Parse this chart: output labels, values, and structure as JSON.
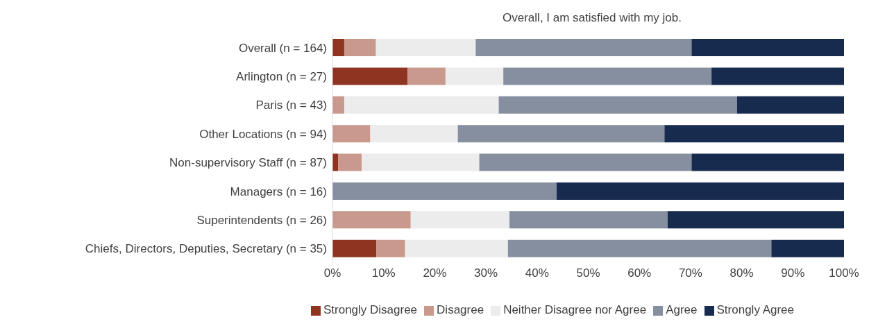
{
  "chart_data": {
    "type": "bar",
    "orientation": "horizontal",
    "stacked": true,
    "title": "Overall, I am satisfied with my job.",
    "categories": [
      "Overall (n = 164)",
      "Arlington (n = 27)",
      "Paris (n = 43)",
      "Other Locations (n = 94)",
      "Non-supervisory Staff (n = 87)",
      "Managers (n = 16)",
      "Superintendents (n = 26)",
      "Chiefs, Directors, Deputies, Secretary (n = 35)"
    ],
    "series": [
      {
        "name": "Strongly Disagree",
        "color": "#8e3420",
        "values": [
          2.3,
          14.7,
          0,
          0,
          1.1,
          0,
          0,
          8.6
        ]
      },
      {
        "name": "Disagree",
        "color": "#c9998d",
        "values": [
          6.2,
          7.4,
          2.3,
          7.4,
          4.6,
          0,
          15.3,
          5.6
        ]
      },
      {
        "name": "Neither Disagree nor Agree",
        "color": "#ececec",
        "values": [
          19.5,
          11.3,
          30.2,
          17.1,
          23.0,
          0,
          19.3,
          20.1
        ]
      },
      {
        "name": "Agree",
        "color": "#858fa0",
        "values": [
          42.2,
          40.7,
          46.6,
          40.4,
          41.5,
          43.8,
          30.9,
          51.5
        ]
      },
      {
        "name": "Strongly Agree",
        "color": "#172b4e",
        "values": [
          29.8,
          25.9,
          20.9,
          35.1,
          29.8,
          56.2,
          34.5,
          14.2
        ]
      }
    ],
    "xlim": [
      0,
      100
    ],
    "xticks": [
      {
        "value": 0,
        "label": "0%"
      },
      {
        "value": 10,
        "label": "10%"
      },
      {
        "value": 20,
        "label": "20%"
      },
      {
        "value": 30,
        "label": "30%"
      },
      {
        "value": 40,
        "label": "40%"
      },
      {
        "value": 50,
        "label": "50%"
      },
      {
        "value": 60,
        "label": "60%"
      },
      {
        "value": 70,
        "label": "70%"
      },
      {
        "value": 80,
        "label": "80%"
      },
      {
        "value": 90,
        "label": "90%"
      },
      {
        "value": 100,
        "label": "100%"
      }
    ],
    "grid": false,
    "legend": "bottom"
  }
}
